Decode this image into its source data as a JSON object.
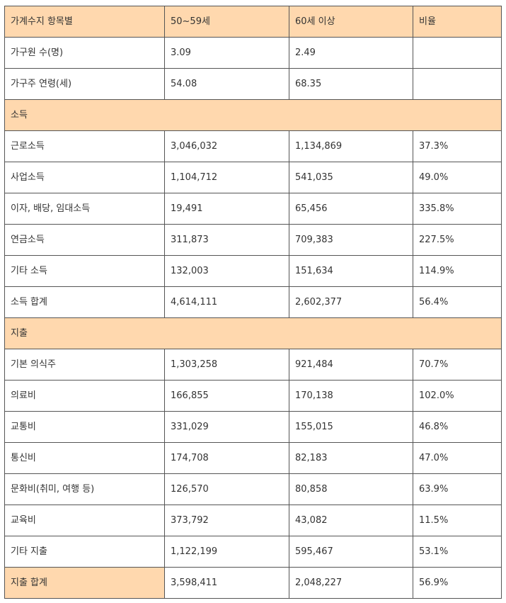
{
  "header": [
    "가계수지 항목별",
    "50~59세",
    "60세 이상",
    "비율"
  ],
  "household_rows": [
    [
      "가구원 수(명)",
      "3.09",
      "2.49",
      ""
    ],
    [
      "가구주 연령(세)",
      "54.08",
      "68.35",
      ""
    ]
  ],
  "income_section": "소득",
  "income_rows": [
    [
      "근로소득",
      "3,046,032",
      "1,134,869",
      "37.3%"
    ],
    [
      "사업소득",
      "1,104,712",
      "541,035",
      "49.0%"
    ],
    [
      "이자, 배당, 임대소득",
      "19,491",
      "65,456",
      "335.8%"
    ],
    [
      "연금소득",
      "311,873",
      "709,383",
      "227.5%"
    ],
    [
      "기타 소득",
      "132,003",
      "151,634",
      "114.9%"
    ],
    [
      "소득 합계",
      "4,614,111",
      "2,602,377",
      "56.4%"
    ]
  ],
  "expense_section": "지출",
  "expense_rows": [
    [
      "기본 의식주",
      "1,303,258",
      "921,484",
      "70.7%"
    ],
    [
      "의료비",
      "166,855",
      "170,138",
      "102.0%"
    ],
    [
      "교통비",
      "331,029",
      "155,015",
      "46.8%"
    ],
    [
      "통신비",
      "174,708",
      "82,183",
      "47.0%"
    ],
    [
      "문화비(취미, 여행 등)",
      "126,570",
      "80,858",
      "63.9%"
    ],
    [
      "교육비",
      "373,792",
      "43,082",
      "11.5%"
    ],
    [
      "기타 지출",
      "1,122,199",
      "595,467",
      "53.1%"
    ]
  ],
  "expense_total": [
    "지출 합계",
    "3,598,411",
    "2,048,227",
    "56.9%"
  ],
  "colors": {
    "highlight": "#ffd8ae",
    "border": "#555555",
    "text": "#333333"
  }
}
